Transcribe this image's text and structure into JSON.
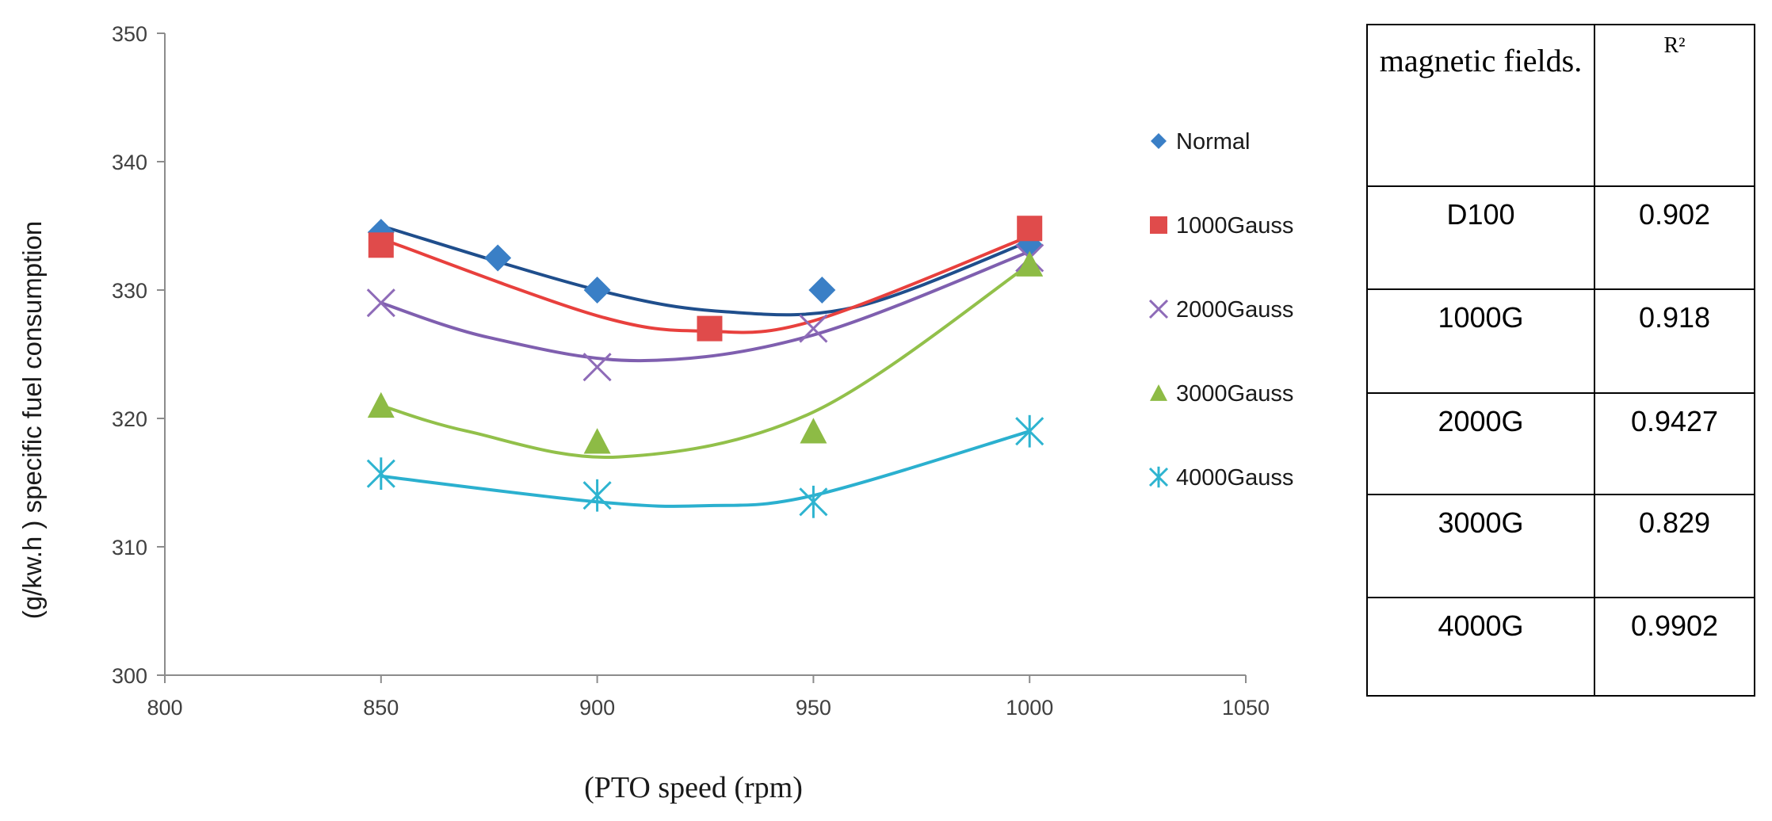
{
  "chart_data": {
    "type": "scatter",
    "xlabel": "(PTO speed (rpm)",
    "ylabel": "(g/kw.h ) specific fuel consumption",
    "xlim": [
      800,
      1050
    ],
    "ylim": [
      300,
      350
    ],
    "xticks": [
      800,
      850,
      900,
      950,
      1000,
      1050
    ],
    "yticks": [
      300,
      310,
      320,
      330,
      340,
      350
    ],
    "legend_position": "right",
    "series": [
      {
        "name": "Normal",
        "color": "#3A7FC6",
        "trend_color": "#1F4E8C",
        "marker": "diamond",
        "points": [
          [
            850,
            334.5
          ],
          [
            877,
            332.5
          ],
          [
            900,
            330
          ],
          [
            952,
            330
          ],
          [
            1000,
            333.5
          ]
        ],
        "trend": [
          [
            850,
            335
          ],
          [
            900,
            330
          ],
          [
            930,
            328.3
          ],
          [
            960,
            328.7
          ],
          [
            1000,
            333.8
          ]
        ]
      },
      {
        "name": "1000Gauss",
        "color": "#E04B4B",
        "trend_color": "#E8403D",
        "marker": "square",
        "points": [
          [
            850,
            333.5
          ],
          [
            926,
            327
          ],
          [
            1000,
            334.8
          ]
        ],
        "trend": [
          [
            850,
            334
          ],
          [
            900,
            328
          ],
          [
            925,
            326.8
          ],
          [
            950,
            327.6
          ],
          [
            1000,
            334.2
          ]
        ]
      },
      {
        "name": "2000Gauss",
        "color": "#8E6BB8",
        "trend_color": "#7F5FAF",
        "marker": "x",
        "points": [
          [
            850,
            329
          ],
          [
            900,
            324
          ],
          [
            950,
            327
          ],
          [
            1000,
            332.5
          ]
        ],
        "trend": [
          [
            850,
            329
          ],
          [
            875,
            326.3
          ],
          [
            910,
            324.5
          ],
          [
            950,
            326.5
          ],
          [
            1000,
            333
          ]
        ]
      },
      {
        "name": "3000Gauss",
        "color": "#8DBB45",
        "trend_color": "#92C04A",
        "marker": "triangle",
        "points": [
          [
            850,
            321
          ],
          [
            900,
            318.2
          ],
          [
            950,
            319
          ],
          [
            1000,
            332
          ]
        ],
        "trend": [
          [
            850,
            321
          ],
          [
            870,
            319
          ],
          [
            905,
            317
          ],
          [
            950,
            320.5
          ],
          [
            1000,
            332
          ]
        ]
      },
      {
        "name": "4000Gauss",
        "color": "#2EB4D0",
        "trend_color": "#2BB0CF",
        "marker": "asterisk",
        "points": [
          [
            850,
            315.7
          ],
          [
            900,
            314
          ],
          [
            950,
            313.5
          ],
          [
            1000,
            319
          ]
        ],
        "trend": [
          [
            850,
            315.5
          ],
          [
            900,
            313.5
          ],
          [
            925,
            313.2
          ],
          [
            950,
            314
          ],
          [
            1000,
            319
          ]
        ]
      }
    ]
  },
  "r2_table": {
    "header_field": "magnetic fields.",
    "header_r2": "R²",
    "rows": [
      {
        "field": "D100",
        "r2": "0.902"
      },
      {
        "field": "1000G",
        "r2": "0.918"
      },
      {
        "field": "2000G",
        "r2": "0.9427"
      },
      {
        "field": "3000G",
        "r2": "0.829"
      },
      {
        "field": "4000G",
        "r2": "0.9902"
      }
    ]
  }
}
